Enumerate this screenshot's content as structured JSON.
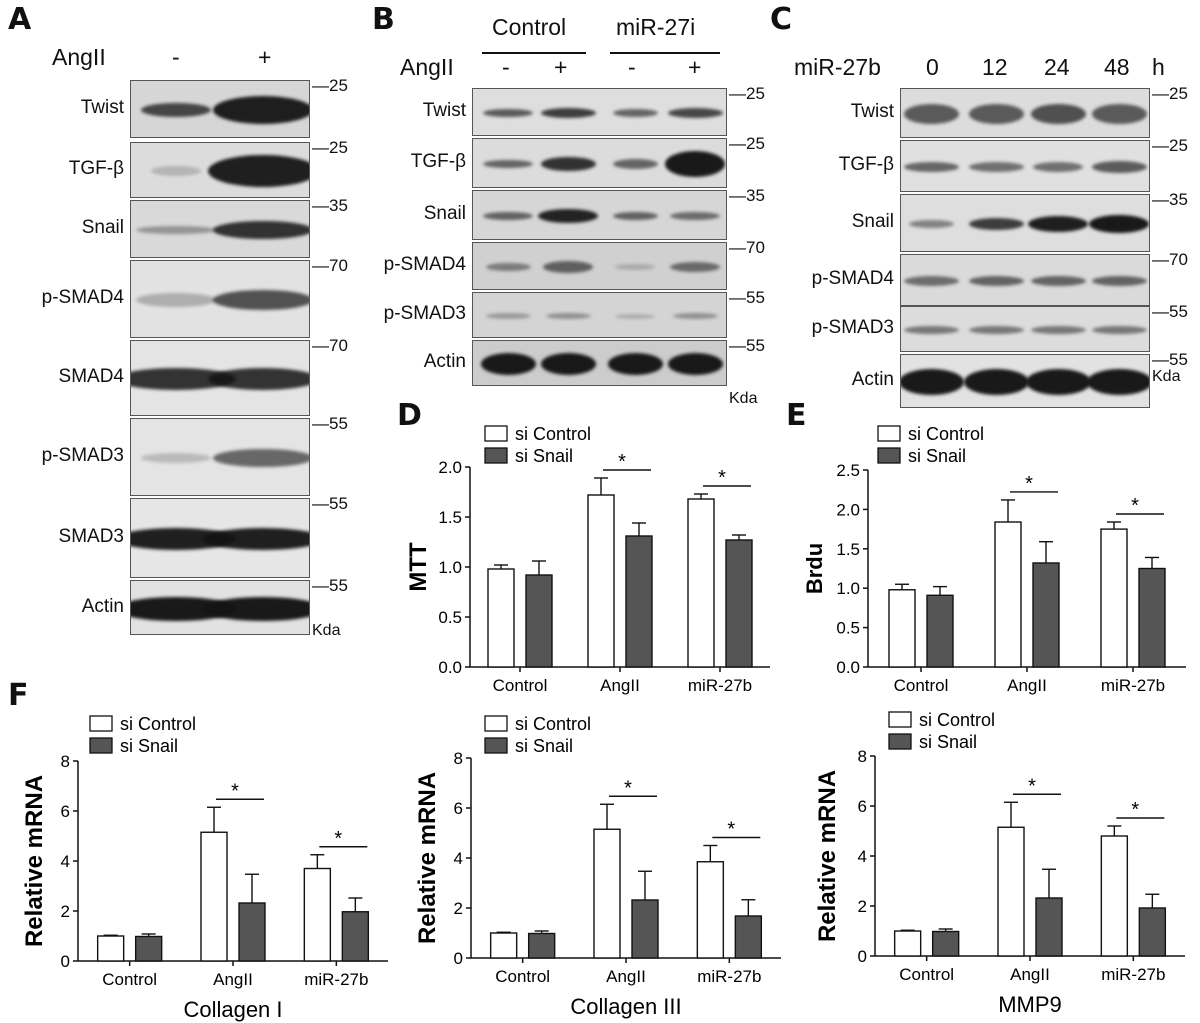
{
  "panels": {
    "A": "A",
    "B": "B",
    "C": "C",
    "D": "D",
    "E": "E",
    "F": "F"
  },
  "kda": "Kda",
  "blotA": {
    "treatment": "AngII",
    "minus": "-",
    "plus": "+",
    "proteins": [
      "Twist",
      "TGF-β",
      "Snail",
      "p-SMAD4",
      "SMAD4",
      "p-SMAD3",
      "SMAD3",
      "Actin"
    ],
    "markers": [
      "—25",
      "—25",
      "—35",
      "—70",
      "—70",
      "—55",
      "—55",
      "—55"
    ]
  },
  "blotB": {
    "group1": "Control",
    "group2": "miR-27i",
    "treatment": "AngII",
    "lanes": [
      "-",
      "+",
      "-",
      "+"
    ],
    "proteins": [
      "Twist",
      "TGF-β",
      "Snail",
      "p-SMAD4",
      "p-SMAD3",
      "Actin"
    ],
    "markers": [
      "—25",
      "—25",
      "—35",
      "—70",
      "—55",
      "—55"
    ]
  },
  "blotC": {
    "treatment": "miR-27b",
    "times": [
      "0",
      "12",
      "24",
      "48"
    ],
    "unit": "h",
    "proteins": [
      "Twist",
      "TGF-β",
      "Snail",
      "p-SMAD4",
      "p-SMAD3",
      "Actin"
    ],
    "markers": [
      "—25",
      "—25",
      "—35",
      "—70",
      "—55",
      "—55"
    ]
  },
  "colors": {
    "si_control": "#ffffff",
    "si_snail": "#555555",
    "band": "#1a1a1a"
  },
  "chart_data": [
    {
      "panel": "D",
      "type": "bar",
      "categories": [
        "Control",
        "AngII",
        "miR-27b"
      ],
      "ylabel": "MTT",
      "xlabel": "",
      "ylim": [
        0,
        2.0
      ],
      "yticks": [
        "0.0",
        "0.5",
        "1.0",
        "1.5",
        "2.0"
      ],
      "series": [
        {
          "name": "si Control",
          "values": [
            0.98,
            1.72,
            1.68
          ],
          "errors": [
            0.04,
            0.17,
            0.05
          ]
        },
        {
          "name": "si Snail",
          "values": [
            0.92,
            1.31,
            1.27
          ],
          "errors": [
            0.14,
            0.13,
            0.05
          ]
        }
      ],
      "significance": [
        {
          "category": "AngII",
          "label": "*"
        },
        {
          "category": "miR-27b",
          "label": "*"
        }
      ]
    },
    {
      "panel": "E",
      "type": "bar",
      "categories": [
        "Control",
        "AngII",
        "miR-27b"
      ],
      "ylabel": "Brdu",
      "xlabel": "",
      "ylim": [
        0,
        2.5
      ],
      "yticks": [
        "0.0",
        "0.5",
        "1.0",
        "1.5",
        "2.0",
        "2.5"
      ],
      "series": [
        {
          "name": "si Control",
          "values": [
            0.98,
            1.84,
            1.75
          ],
          "errors": [
            0.07,
            0.28,
            0.09
          ]
        },
        {
          "name": "si Snail",
          "values": [
            0.91,
            1.32,
            1.25
          ],
          "errors": [
            0.11,
            0.27,
            0.14
          ]
        }
      ],
      "significance": [
        {
          "category": "AngII",
          "label": "*"
        },
        {
          "category": "miR-27b",
          "label": "*"
        }
      ]
    },
    {
      "panel": "F1",
      "type": "bar",
      "categories": [
        "Control",
        "AngII",
        "miR-27b"
      ],
      "ylabel": "Relative mRNA",
      "xlabel": "Collagen I",
      "ylim": [
        0,
        8
      ],
      "yticks": [
        "0",
        "2",
        "4",
        "6",
        "8"
      ],
      "series": [
        {
          "name": "si Control",
          "values": [
            1.0,
            5.15,
            3.7
          ],
          "errors": [
            0.03,
            1.0,
            0.55
          ]
        },
        {
          "name": "si Snail",
          "values": [
            0.98,
            2.32,
            1.97
          ],
          "errors": [
            0.1,
            1.15,
            0.55
          ]
        }
      ],
      "significance": [
        {
          "category": "AngII",
          "label": "*"
        },
        {
          "category": "miR-27b",
          "label": "*"
        }
      ]
    },
    {
      "panel": "F2",
      "type": "bar",
      "categories": [
        "Control",
        "AngII",
        "miR-27b"
      ],
      "ylabel": "Relative mRNA",
      "xlabel": "Collagen III",
      "ylim": [
        0,
        8
      ],
      "yticks": [
        "0",
        "2",
        "4",
        "6",
        "8"
      ],
      "series": [
        {
          "name": "si Control",
          "values": [
            1.0,
            5.15,
            3.85
          ],
          "errors": [
            0.03,
            1.0,
            0.65
          ]
        },
        {
          "name": "si Snail",
          "values": [
            0.98,
            2.32,
            1.68
          ],
          "errors": [
            0.1,
            1.15,
            0.65
          ]
        }
      ],
      "significance": [
        {
          "category": "AngII",
          "label": "*"
        },
        {
          "category": "miR-27b",
          "label": "*"
        }
      ]
    },
    {
      "panel": "F3",
      "type": "bar",
      "categories": [
        "Control",
        "AngII",
        "miR-27b"
      ],
      "ylabel": "Relative mRNA",
      "xlabel": "MMP9",
      "ylim": [
        0,
        8
      ],
      "yticks": [
        "0",
        "2",
        "4",
        "6",
        "8"
      ],
      "series": [
        {
          "name": "si Control",
          "values": [
            1.0,
            5.15,
            4.8
          ],
          "errors": [
            0.03,
            1.0,
            0.4
          ]
        },
        {
          "name": "si Snail",
          "values": [
            0.98,
            2.32,
            1.92
          ],
          "errors": [
            0.1,
            1.15,
            0.55
          ]
        }
      ],
      "significance": [
        {
          "category": "AngII",
          "label": "*"
        },
        {
          "category": "miR-27b",
          "label": "*"
        }
      ]
    }
  ]
}
